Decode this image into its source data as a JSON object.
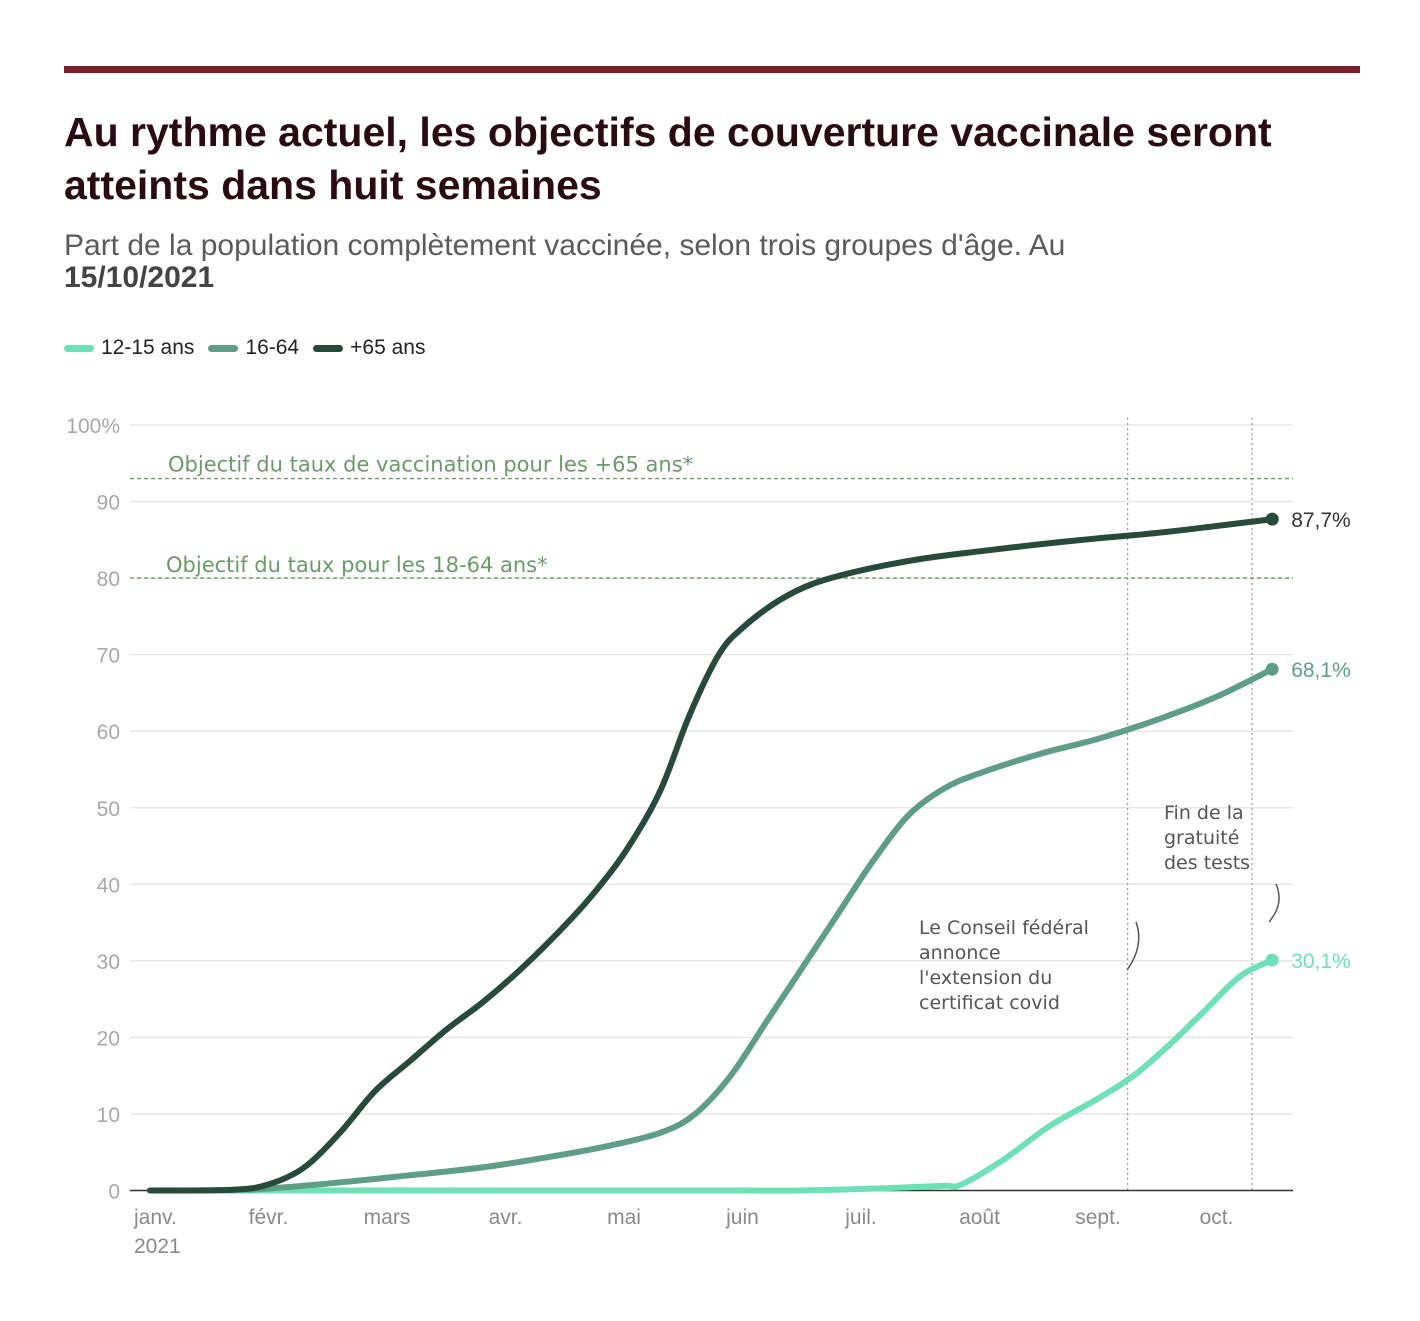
{
  "title": "Au rythme actuel, les objectifs de couverture vaccinale seront atteints dans huit semaines",
  "subtitle_text": "Part de la population complètement vaccinée, selon trois groupes d'âge. Au",
  "subtitle_date": "15/10/2021",
  "colors": {
    "rule": "#7a1f2b",
    "series_12_15": "#6ee0b6",
    "series_16_64": "#5e9e86",
    "series_65": "#274a3a",
    "goal": "#6a9a6a"
  },
  "chart_data": {
    "type": "line",
    "ylim": [
      0,
      100
    ],
    "y_ticks": [
      0,
      10,
      20,
      30,
      40,
      50,
      60,
      70,
      80,
      90,
      100
    ],
    "y_tick_labels": [
      "0",
      "10",
      "20",
      "30",
      "40",
      "50",
      "60",
      "70",
      "80",
      "90",
      "100%"
    ],
    "x_range": [
      0,
      9.55
    ],
    "x_ticks": [
      0,
      1,
      2,
      3,
      4,
      5,
      6,
      7,
      8,
      9
    ],
    "x_tick_labels": [
      "janv.",
      "févr.",
      "mars",
      "avr.",
      "mai",
      "juin",
      "juil.",
      "août",
      "sept.",
      "oct."
    ],
    "x_tick_sublabel": "2021",
    "legend": [
      "12-15 ans",
      "16-64",
      "+65 ans"
    ],
    "series": [
      {
        "name": "12-15 ans",
        "color": "#6ee0b6",
        "end_label": "30,1%",
        "points": [
          [
            0,
            0
          ],
          [
            1,
            0
          ],
          [
            2,
            0
          ],
          [
            3,
            0
          ],
          [
            4,
            0
          ],
          [
            5,
            0
          ],
          [
            5.5,
            0
          ],
          [
            6.2,
            0.3
          ],
          [
            6.7,
            0.6
          ],
          [
            6.85,
            0.8
          ],
          [
            7.2,
            4
          ],
          [
            7.6,
            8.5
          ],
          [
            8.0,
            12
          ],
          [
            8.3,
            15
          ],
          [
            8.6,
            19
          ],
          [
            8.9,
            23.5
          ],
          [
            9.2,
            28
          ],
          [
            9.47,
            30.1
          ]
        ]
      },
      {
        "name": "16-64",
        "color": "#5e9e86",
        "end_label": "68,1%",
        "points": [
          [
            0,
            0
          ],
          [
            0.8,
            0.1
          ],
          [
            1.2,
            0.5
          ],
          [
            1.7,
            1.2
          ],
          [
            2.2,
            2
          ],
          [
            2.8,
            3
          ],
          [
            3.3,
            4.2
          ],
          [
            3.8,
            5.6
          ],
          [
            4.3,
            7.5
          ],
          [
            4.6,
            10
          ],
          [
            4.9,
            15
          ],
          [
            5.2,
            22
          ],
          [
            5.5,
            29
          ],
          [
            5.8,
            36
          ],
          [
            6.1,
            43
          ],
          [
            6.4,
            49
          ],
          [
            6.7,
            52.5
          ],
          [
            7.0,
            54.5
          ],
          [
            7.5,
            57
          ],
          [
            8.0,
            59
          ],
          [
            8.5,
            61.5
          ],
          [
            9.0,
            64.5
          ],
          [
            9.47,
            68.1
          ]
        ]
      },
      {
        "name": "+65 ans",
        "color": "#274a3a",
        "end_label": "87,7%",
        "points": [
          [
            0,
            0
          ],
          [
            0.7,
            0.1
          ],
          [
            1.0,
            0.8
          ],
          [
            1.3,
            3
          ],
          [
            1.6,
            7.5
          ],
          [
            1.9,
            13
          ],
          [
            2.2,
            17
          ],
          [
            2.5,
            21
          ],
          [
            2.8,
            24.5
          ],
          [
            3.1,
            28.5
          ],
          [
            3.4,
            33
          ],
          [
            3.7,
            38
          ],
          [
            4.0,
            44
          ],
          [
            4.3,
            52
          ],
          [
            4.55,
            62
          ],
          [
            4.8,
            70
          ],
          [
            5.0,
            73.5
          ],
          [
            5.3,
            77
          ],
          [
            5.6,
            79.3
          ],
          [
            6.0,
            81
          ],
          [
            6.5,
            82.5
          ],
          [
            7.0,
            83.5
          ],
          [
            7.5,
            84.4
          ],
          [
            8.0,
            85.2
          ],
          [
            8.5,
            85.9
          ],
          [
            9.0,
            86.8
          ],
          [
            9.47,
            87.7
          ]
        ]
      }
    ],
    "goal_lines": [
      {
        "value": 93,
        "label": "Objectif du taux de vaccination pour les +65 ans*"
      },
      {
        "value": 80,
        "label": "Objectif du taux pour les 18-64 ans*"
      }
    ],
    "event_lines": [
      {
        "x": 8.25,
        "label_lines": [
          "Le Conseil fédéral",
          "annonce",
          "l'extension du",
          "certificat covid"
        ]
      },
      {
        "x": 9.3,
        "label_lines": [
          "Fin de la",
          "gratuité",
          "des tests"
        ]
      }
    ]
  }
}
